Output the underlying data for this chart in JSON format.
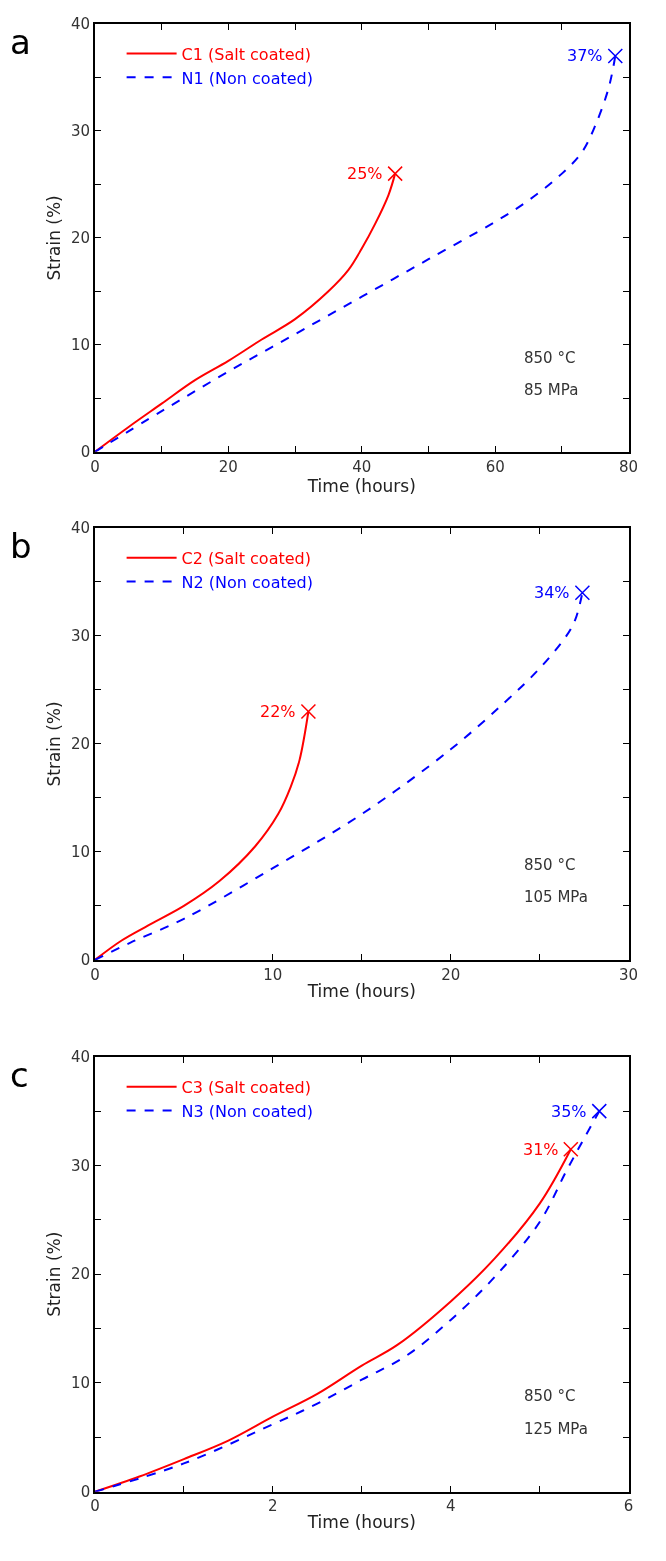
{
  "chart_data": [
    {
      "type": "line",
      "title": "a",
      "xlabel": "Time (hours)",
      "ylabel": "Strain (%)",
      "xlim": [
        0,
        80
      ],
      "ylim": [
        0,
        40
      ],
      "xticks": [
        0,
        {
          "value": 10,
          "label": null
        },
        20,
        {
          "value": 30,
          "label": null
        },
        40,
        {
          "value": 50,
          "label": null
        },
        60,
        {
          "value": 70,
          "label": null
        },
        80
      ],
      "yticks": [
        0,
        {
          "value": 5,
          "label": null
        },
        10,
        {
          "value": 15,
          "label": null
        },
        20,
        {
          "value": 25,
          "label": null
        },
        30,
        {
          "value": 35,
          "label": null
        },
        40
      ],
      "legend": "top left",
      "marker": "none",
      "series": [
        {
          "name": "C1 (Salt coated)",
          "color": "#ff0000",
          "line_style": "solid",
          "x": [
            0,
            5,
            10,
            15,
            20,
            25,
            30,
            35,
            38,
            40,
            42,
            44,
            45
          ],
          "values": [
            0,
            2.3,
            4.5,
            6.7,
            8.5,
            10.5,
            12.4,
            15,
            17,
            19,
            21.3,
            24,
            26
          ]
        },
        {
          "name": "N1 (Non coated)",
          "color": "#0000ff",
          "line_style": "dashed",
          "x": [
            0,
            10,
            20,
            30,
            40,
            50,
            60,
            65,
            70,
            73,
            75,
            77,
            78
          ],
          "values": [
            0,
            3.8,
            7.5,
            11,
            14.5,
            18,
            21.5,
            23.5,
            26,
            28,
            30.5,
            34,
            37
          ]
        },
        {
          "type": "scatter",
          "marker": "cross",
          "color": "#ff0000",
          "x": [
            45
          ],
          "values": [
            26
          ]
        },
        {
          "type": "scatter",
          "marker": "cross",
          "color": "#0000ff",
          "x": [
            78
          ],
          "values": [
            37
          ]
        }
      ],
      "annotations": [
        {
          "text": "25%",
          "x": 45,
          "y": 26
        },
        {
          "text": "37%",
          "x": 78,
          "y": 37
        },
        "850 °C",
        "85 MPa"
      ]
    },
    {
      "type": "line",
      "title": "b",
      "xlabel": "Time (hours)",
      "ylabel": "Strain (%)",
      "xlim": [
        0,
        30
      ],
      "ylim": [
        0,
        40
      ],
      "xticks": [
        0,
        {
          "value": 5,
          "label": null
        },
        10,
        {
          "value": 15,
          "label": null
        },
        20,
        {
          "value": 25,
          "label": null
        },
        30
      ],
      "yticks": [
        0,
        {
          "value": 5,
          "label": null
        },
        10,
        {
          "value": 15,
          "label": null
        },
        20,
        {
          "value": 25,
          "label": null
        },
        30,
        {
          "value": 35,
          "label": null
        },
        40
      ],
      "legend": "top left",
      "marker": "none",
      "series": [
        {
          "name": "C2 (Salt coated)",
          "color": "#ff0000",
          "line_style": "solid",
          "x": [
            0,
            1.5,
            3,
            5,
            7,
            9,
            10.3,
            11,
            11.5,
            12
          ],
          "values": [
            0,
            1.8,
            3.2,
            5,
            7.3,
            10.5,
            13.5,
            16,
            18.5,
            23
          ]
        },
        {
          "name": "N2 (Non coated)",
          "color": "#0000ff",
          "line_style": "dashed",
          "x": [
            0,
            2,
            5,
            10,
            15,
            20,
            23,
            25,
            26.5,
            27,
            27.4
          ],
          "values": [
            0,
            1.6,
            3.8,
            8.5,
            13.5,
            19.5,
            23.8,
            27,
            30,
            31.5,
            34
          ]
        },
        {
          "type": "scatter",
          "marker": "cross",
          "color": "#ff0000",
          "x": [
            12
          ],
          "values": [
            23
          ]
        },
        {
          "type": "scatter",
          "marker": "cross",
          "color": "#0000ff",
          "x": [
            27.4
          ],
          "values": [
            34
          ]
        }
      ],
      "annotations": [
        {
          "text": "22%",
          "x": 12,
          "y": 23
        },
        {
          "text": "34%",
          "x": 27.4,
          "y": 34
        },
        "850 °C",
        "105 MPa"
      ]
    },
    {
      "type": "line",
      "title": "c",
      "xlabel": "Time (hours)",
      "ylabel": "Strain (%)",
      "xlim": [
        0,
        6
      ],
      "ylim": [
        0,
        40
      ],
      "xticks": [
        0,
        {
          "value": 1,
          "label": null
        },
        2,
        {
          "value": 3,
          "label": null
        },
        4,
        {
          "value": 5,
          "label": null
        },
        6
      ],
      "yticks": [
        0,
        {
          "value": 5,
          "label": null
        },
        10,
        {
          "value": 15,
          "label": null
        },
        20,
        {
          "value": 25,
          "label": null
        },
        30,
        {
          "value": 35,
          "label": null
        },
        40
      ],
      "legend": "top left",
      "marker": "none",
      "series": [
        {
          "name": "C3 (Salt coated)",
          "color": "#ff0000",
          "line_style": "solid",
          "x": [
            0,
            0.5,
            1,
            1.5,
            2,
            2.5,
            3,
            3.4,
            4,
            4.5,
            5,
            5.35
          ],
          "values": [
            0,
            1.4,
            3,
            4.7,
            6.9,
            9,
            11.6,
            13.5,
            17.5,
            21.5,
            26.5,
            31.5
          ]
        },
        {
          "name": "N3 (Non coated)",
          "color": "#0000ff",
          "line_style": "dashed",
          "x": [
            0,
            1,
            2,
            2.5,
            3,
            3.5,
            4,
            4.5,
            5,
            5.3,
            5.5,
            5.67
          ],
          "values": [
            0,
            2.6,
            6.2,
            8.1,
            10.3,
            12.5,
            15.8,
            19.8,
            24.8,
            29.5,
            32.5,
            35
          ]
        },
        {
          "type": "scatter",
          "marker": "cross",
          "color": "#ff0000",
          "x": [
            5.35
          ],
          "values": [
            31.5
          ]
        },
        {
          "type": "scatter",
          "marker": "cross",
          "color": "#0000ff",
          "x": [
            5.67
          ],
          "values": [
            35
          ]
        }
      ],
      "annotations": [
        {
          "text": "31%",
          "x": 5.35,
          "y": 31.5
        },
        {
          "text": "35%",
          "x": 5.67,
          "y": 35
        },
        "850 °C",
        "125 MPa"
      ]
    }
  ]
}
